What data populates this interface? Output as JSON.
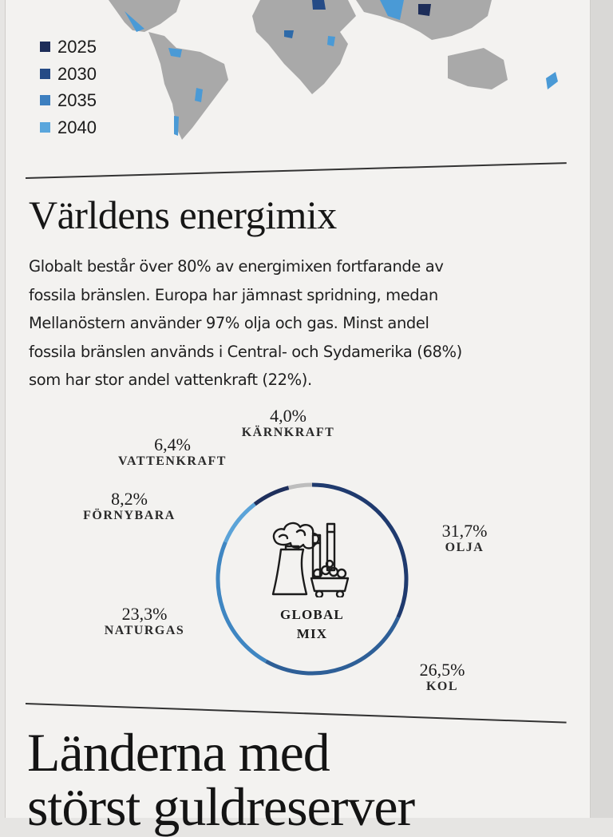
{
  "legend": {
    "items": [
      {
        "label": "2025",
        "color": "#1d2d59"
      },
      {
        "label": "2030",
        "color": "#254b86"
      },
      {
        "label": "2035",
        "color": "#3d7fbf"
      },
      {
        "label": "2040",
        "color": "#5aa6dc"
      }
    ]
  },
  "section": {
    "title": "Världens energimix",
    "intro_lines": [
      "Globalt består över 80% av energimixen fortfarande av",
      "fossila bränslen. Europa har jämnast spridning, medan",
      "Mellanöstern använder 97% olja och gas. Minst andel",
      "fossila bränslen används i Central- och Sydamerika (68%)",
      "som har stor andel vattenkraft (22%)."
    ]
  },
  "chart_data": {
    "type": "pie",
    "center_label": [
      "GLOBAL",
      "MIX"
    ],
    "slices": [
      {
        "label": "OLJA",
        "value": 31.7,
        "display": "31,7%",
        "color": "#1f3a6e"
      },
      {
        "label": "KOL",
        "value": 26.5,
        "display": "26,5%",
        "color": "#2e5f97"
      },
      {
        "label": "NATURGAS",
        "value": 23.3,
        "display": "23,3%",
        "color": "#3f86c2"
      },
      {
        "label": "FÖRNYBARA",
        "value": 8.2,
        "display": "8,2%",
        "color": "#5ba3d8"
      },
      {
        "label": "VATTENKRAFT",
        "value": 6.4,
        "display": "6,4%",
        "color": "#1e2f5c"
      },
      {
        "label": "KÄRNKRAFT",
        "value": 4.0,
        "display": "4,0%",
        "color": "#bdbdbd"
      }
    ]
  },
  "next_section": {
    "title_line1": "Länderna med",
    "title_line2": "störst guldreserver"
  }
}
